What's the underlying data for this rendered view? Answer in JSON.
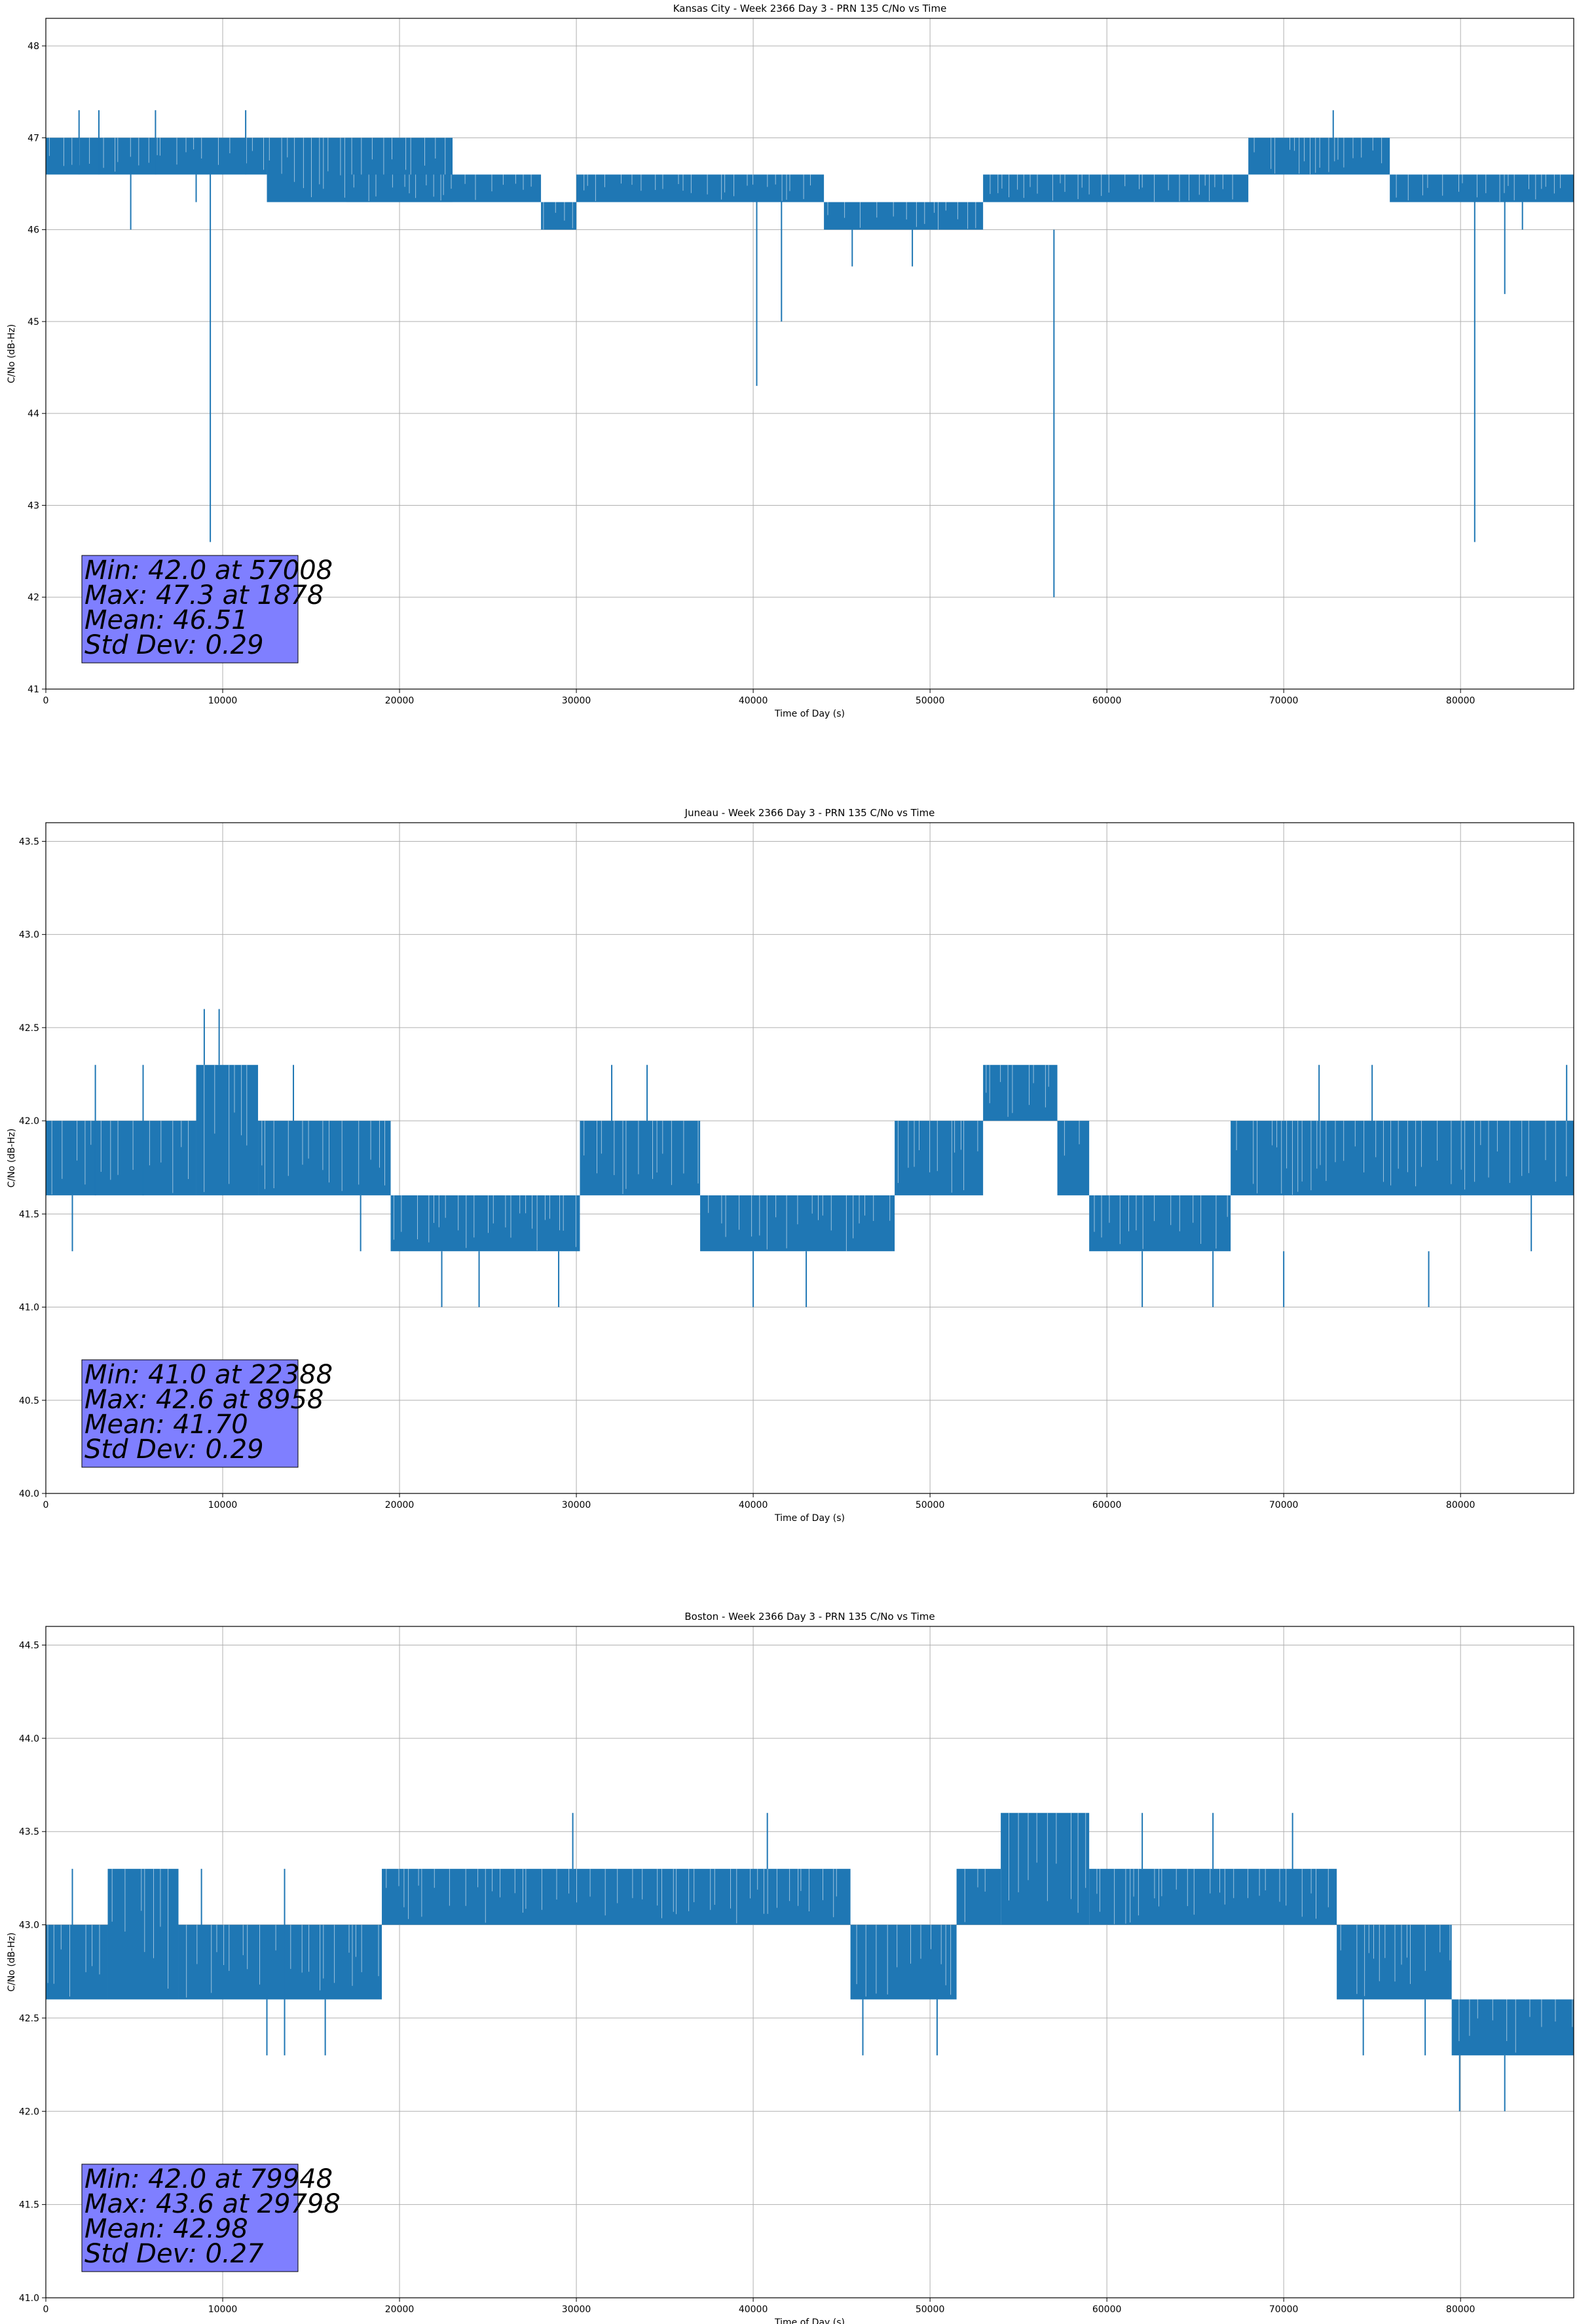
{
  "chart_data": [
    {
      "type": "line",
      "title": "Kansas City - Week 2366 Day 3 - PRN 135 C/No vs Time",
      "xlabel": "Time of Day (s)",
      "ylabel": "C/No (dB-Hz)",
      "xlim": [
        0,
        86400
      ],
      "ylim": [
        41,
        48.3
      ],
      "xticks": [
        0,
        10000,
        20000,
        30000,
        40000,
        50000,
        60000,
        70000,
        80000
      ],
      "xtick_labels": [
        "0",
        "10000",
        "20000",
        "30000",
        "40000",
        "50000",
        "60000",
        "70000",
        "80000"
      ],
      "yticks": [
        41,
        42,
        43,
        44,
        45,
        46,
        47,
        48
      ],
      "ytick_labels": [
        "41",
        "42",
        "43",
        "44",
        "45",
        "46",
        "47",
        "48"
      ],
      "grid": true,
      "color": "#1f77b4",
      "stats_box": [
        "Min: 42.0 at 57008",
        "Max: 47.3 at 1878",
        "Mean: 46.51",
        "Std Dev: 0.29"
      ],
      "bands": [
        {
          "x0": 0,
          "x1": 12500,
          "lo": 46.6,
          "hi": 47.0
        },
        {
          "x0": 12500,
          "x1": 23000,
          "lo": 46.3,
          "hi": 47.0
        },
        {
          "x0": 17000,
          "x1": 28000,
          "lo": 46.3,
          "hi": 46.6
        },
        {
          "x0": 28000,
          "x1": 30000,
          "lo": 46.0,
          "hi": 46.3
        },
        {
          "x0": 30000,
          "x1": 44000,
          "lo": 46.3,
          "hi": 46.6
        },
        {
          "x0": 44000,
          "x1": 53000,
          "lo": 46.0,
          "hi": 46.3
        },
        {
          "x0": 53000,
          "x1": 68000,
          "lo": 46.3,
          "hi": 46.6
        },
        {
          "x0": 68000,
          "x1": 76000,
          "lo": 46.6,
          "hi": 47.0
        },
        {
          "x0": 76000,
          "x1": 86400,
          "lo": 46.3,
          "hi": 46.6
        }
      ],
      "spikes": [
        {
          "x": 1878,
          "lo": 46.6,
          "hi": 47.3
        },
        {
          "x": 3000,
          "lo": 46.6,
          "hi": 47.3
        },
        {
          "x": 4800,
          "lo": 46.0,
          "hi": 46.6
        },
        {
          "x": 6200,
          "lo": 46.6,
          "hi": 47.3
        },
        {
          "x": 8500,
          "lo": 46.3,
          "hi": 46.6
        },
        {
          "x": 9300,
          "lo": 42.6,
          "hi": 46.6
        },
        {
          "x": 11300,
          "lo": 46.6,
          "hi": 47.3
        },
        {
          "x": 40200,
          "lo": 44.3,
          "hi": 46.3
        },
        {
          "x": 41600,
          "lo": 45.0,
          "hi": 46.3
        },
        {
          "x": 45600,
          "lo": 45.6,
          "hi": 46.0
        },
        {
          "x": 49000,
          "lo": 45.6,
          "hi": 46.0
        },
        {
          "x": 57008,
          "lo": 42.0,
          "hi": 46.0
        },
        {
          "x": 72800,
          "lo": 47.0,
          "hi": 47.3
        },
        {
          "x": 80800,
          "lo": 42.6,
          "hi": 46.3
        },
        {
          "x": 82500,
          "lo": 45.3,
          "hi": 46.3
        },
        {
          "x": 83500,
          "lo": 46.0,
          "hi": 46.3
        }
      ]
    },
    {
      "type": "line",
      "title": "Juneau - Week 2366 Day 3 - PRN 135 C/No vs Time",
      "xlabel": "Time of Day (s)",
      "ylabel": "C/No (dB-Hz)",
      "xlim": [
        0,
        86400
      ],
      "ylim": [
        40,
        43.6
      ],
      "xticks": [
        0,
        10000,
        20000,
        30000,
        40000,
        50000,
        60000,
        70000,
        80000
      ],
      "xtick_labels": [
        "0",
        "10000",
        "20000",
        "30000",
        "40000",
        "50000",
        "60000",
        "70000",
        "80000"
      ],
      "yticks": [
        40.0,
        40.5,
        41.0,
        41.5,
        42.0,
        42.5,
        43.0,
        43.5
      ],
      "ytick_labels": [
        "40.0",
        "40.5",
        "41.0",
        "41.5",
        "42.0",
        "42.5",
        "43.0",
        "43.5"
      ],
      "grid": true,
      "color": "#1f77b4",
      "stats_box": [
        "Min: 41.0 at 22388",
        "Max: 42.6 at 8958",
        "Mean: 41.70",
        "Std Dev: 0.29"
      ],
      "bands": [
        {
          "x0": 0,
          "x1": 8500,
          "lo": 41.6,
          "hi": 42.0
        },
        {
          "x0": 8500,
          "x1": 12000,
          "lo": 41.6,
          "hi": 42.3
        },
        {
          "x0": 12000,
          "x1": 19500,
          "lo": 41.6,
          "hi": 42.0
        },
        {
          "x0": 19500,
          "x1": 30200,
          "lo": 41.3,
          "hi": 41.6
        },
        {
          "x0": 30200,
          "x1": 37000,
          "lo": 41.6,
          "hi": 42.0
        },
        {
          "x0": 37000,
          "x1": 48000,
          "lo": 41.3,
          "hi": 41.6
        },
        {
          "x0": 48000,
          "x1": 53000,
          "lo": 41.6,
          "hi": 42.0
        },
        {
          "x0": 53000,
          "x1": 57200,
          "lo": 42.0,
          "hi": 42.3
        },
        {
          "x0": 57200,
          "x1": 59000,
          "lo": 41.6,
          "hi": 42.0
        },
        {
          "x0": 59000,
          "x1": 67000,
          "lo": 41.3,
          "hi": 41.6
        },
        {
          "x0": 67000,
          "x1": 86400,
          "lo": 41.6,
          "hi": 42.0
        }
      ],
      "spikes": [
        {
          "x": 1500,
          "lo": 41.3,
          "hi": 41.6
        },
        {
          "x": 2800,
          "lo": 41.6,
          "hi": 42.3
        },
        {
          "x": 5500,
          "lo": 41.6,
          "hi": 42.3
        },
        {
          "x": 8958,
          "lo": 42.3,
          "hi": 42.6
        },
        {
          "x": 9800,
          "lo": 42.3,
          "hi": 42.6
        },
        {
          "x": 14000,
          "lo": 42.0,
          "hi": 42.3
        },
        {
          "x": 17800,
          "lo": 41.3,
          "hi": 41.6
        },
        {
          "x": 22388,
          "lo": 41.0,
          "hi": 41.3
        },
        {
          "x": 24500,
          "lo": 41.0,
          "hi": 41.3
        },
        {
          "x": 29000,
          "lo": 41.0,
          "hi": 41.3
        },
        {
          "x": 32000,
          "lo": 42.0,
          "hi": 42.3
        },
        {
          "x": 34000,
          "lo": 42.0,
          "hi": 42.3
        },
        {
          "x": 40000,
          "lo": 41.0,
          "hi": 41.3
        },
        {
          "x": 43000,
          "lo": 41.0,
          "hi": 41.3
        },
        {
          "x": 62000,
          "lo": 41.0,
          "hi": 41.3
        },
        {
          "x": 66000,
          "lo": 41.0,
          "hi": 41.3
        },
        {
          "x": 70000,
          "lo": 41.0,
          "hi": 41.3
        },
        {
          "x": 72000,
          "lo": 42.0,
          "hi": 42.3
        },
        {
          "x": 75000,
          "lo": 42.0,
          "hi": 42.3
        },
        {
          "x": 78200,
          "lo": 41.0,
          "hi": 41.3
        },
        {
          "x": 84000,
          "lo": 41.3,
          "hi": 41.6
        },
        {
          "x": 86000,
          "lo": 42.0,
          "hi": 42.3
        }
      ]
    },
    {
      "type": "line",
      "title": "Boston - Week 2366 Day 3 - PRN 135 C/No vs Time",
      "xlabel": "Time of Day (s)",
      "ylabel": "C/No (dB-Hz)",
      "xlim": [
        0,
        86400
      ],
      "ylim": [
        41,
        44.6
      ],
      "xticks": [
        0,
        10000,
        20000,
        30000,
        40000,
        50000,
        60000,
        70000,
        80000
      ],
      "xtick_labels": [
        "0",
        "10000",
        "20000",
        "30000",
        "40000",
        "50000",
        "60000",
        "70000",
        "80000"
      ],
      "yticks": [
        41.0,
        41.5,
        42.0,
        42.5,
        43.0,
        43.5,
        44.0,
        44.5
      ],
      "ytick_labels": [
        "41.0",
        "41.5",
        "42.0",
        "42.5",
        "43.0",
        "43.5",
        "44.0",
        "44.5"
      ],
      "grid": true,
      "color": "#1f77b4",
      "stats_box": [
        "Min: 42.0 at 79948",
        "Max: 43.6 at 29798",
        "Mean: 42.98",
        "Std Dev: 0.27"
      ],
      "bands": [
        {
          "x0": 0,
          "x1": 3500,
          "lo": 42.6,
          "hi": 43.0
        },
        {
          "x0": 3500,
          "x1": 7500,
          "lo": 42.6,
          "hi": 43.3
        },
        {
          "x0": 7500,
          "x1": 19000,
          "lo": 42.6,
          "hi": 43.0
        },
        {
          "x0": 19000,
          "x1": 45500,
          "lo": 43.0,
          "hi": 43.3
        },
        {
          "x0": 45500,
          "x1": 51500,
          "lo": 42.6,
          "hi": 43.0
        },
        {
          "x0": 51500,
          "x1": 54000,
          "lo": 43.0,
          "hi": 43.3
        },
        {
          "x0": 54000,
          "x1": 59000,
          "lo": 43.0,
          "hi": 43.6
        },
        {
          "x0": 59000,
          "x1": 73000,
          "lo": 43.0,
          "hi": 43.3
        },
        {
          "x0": 73000,
          "x1": 79500,
          "lo": 42.6,
          "hi": 43.0
        },
        {
          "x0": 79500,
          "x1": 86400,
          "lo": 42.3,
          "hi": 42.6
        }
      ],
      "spikes": [
        {
          "x": 1500,
          "lo": 43.0,
          "hi": 43.3
        },
        {
          "x": 8800,
          "lo": 43.0,
          "hi": 43.3
        },
        {
          "x": 12500,
          "lo": 42.3,
          "hi": 42.6
        },
        {
          "x": 13500,
          "lo": 42.3,
          "hi": 43.3
        },
        {
          "x": 15800,
          "lo": 42.3,
          "hi": 42.6
        },
        {
          "x": 29798,
          "lo": 43.3,
          "hi": 43.6
        },
        {
          "x": 40800,
          "lo": 43.3,
          "hi": 43.6
        },
        {
          "x": 46200,
          "lo": 42.3,
          "hi": 42.6
        },
        {
          "x": 50400,
          "lo": 42.3,
          "hi": 42.6
        },
        {
          "x": 62000,
          "lo": 43.3,
          "hi": 43.6
        },
        {
          "x": 66000,
          "lo": 43.3,
          "hi": 43.6
        },
        {
          "x": 70500,
          "lo": 43.3,
          "hi": 43.6
        },
        {
          "x": 74500,
          "lo": 42.3,
          "hi": 42.6
        },
        {
          "x": 78000,
          "lo": 42.3,
          "hi": 42.6
        },
        {
          "x": 79948,
          "lo": 42.0,
          "hi": 42.3
        },
        {
          "x": 82500,
          "lo": 42.0,
          "hi": 42.3
        }
      ]
    }
  ]
}
